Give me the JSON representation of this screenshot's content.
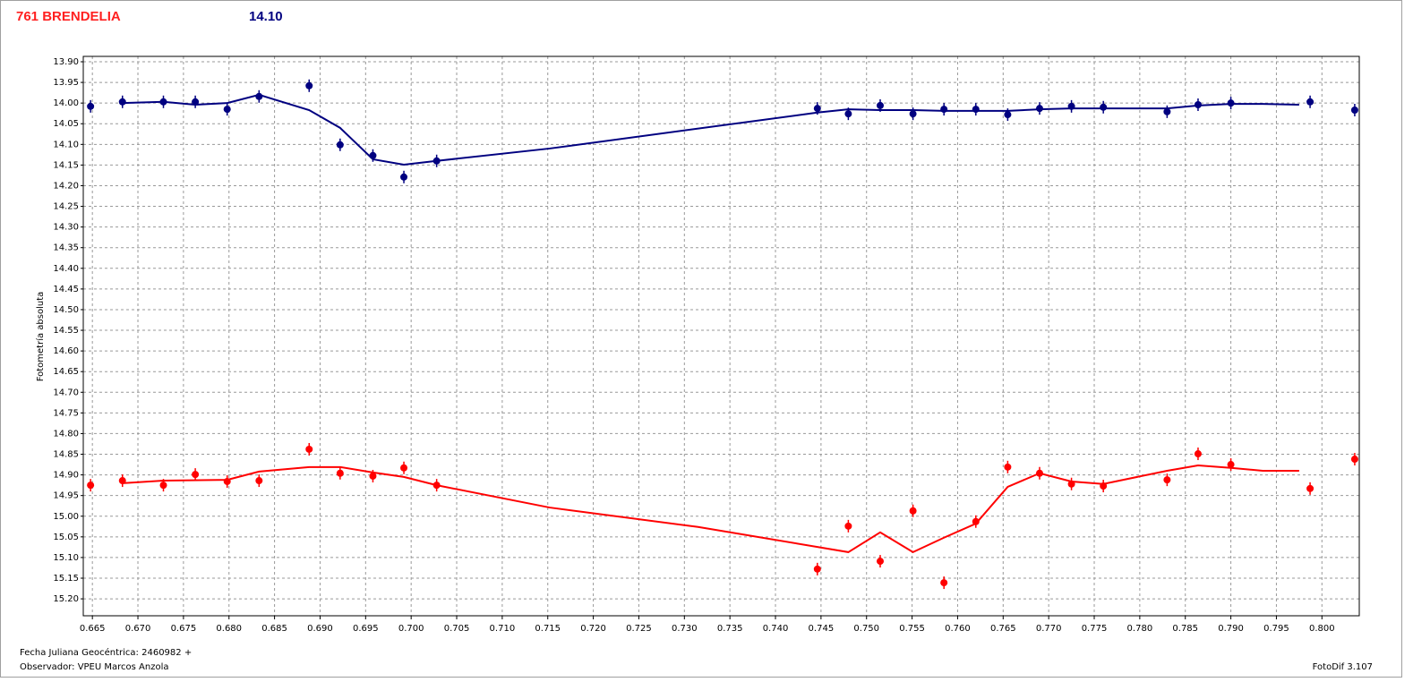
{
  "chart_data": {
    "type": "scatter",
    "title": "761 BRENDELIA",
    "subtitle": "14.10",
    "ylabel": "Fotometría absoluta",
    "xlabel": "Fecha Juliana Geocéntrica: 2460982 +",
    "observer": "Observador: VPEU Marcos Anzola",
    "software": "FotoDif 3.107",
    "grid": true,
    "y_inverted": true,
    "xlim": [
      0.664,
      0.8041
    ],
    "ylim": [
      13.887,
      15.241
    ],
    "xticks": [
      0.665,
      {
        "value": 0.67,
        "label": "0.670"
      },
      0.675,
      {
        "value": 0.68,
        "label": "0.680"
      },
      0.685,
      {
        "value": 0.69,
        "label": "0.690"
      },
      0.695,
      {
        "value": 0.7,
        "label": "0.700"
      },
      0.705,
      {
        "value": 0.71,
        "label": "0.710"
      },
      0.715,
      {
        "value": 0.72,
        "label": "0.720"
      },
      0.725,
      {
        "value": 0.73,
        "label": "0.730"
      },
      0.735,
      {
        "value": 0.74,
        "label": "0.740"
      },
      0.745,
      {
        "value": 0.75,
        "label": "0.750"
      },
      0.755,
      {
        "value": 0.76,
        "label": "0.760"
      },
      0.765,
      {
        "value": 0.77,
        "label": "0.770"
      },
      0.775,
      {
        "value": 0.78,
        "label": "0.780"
      },
      0.785,
      {
        "value": 0.79,
        "label": "0.790"
      },
      0.795,
      {
        "value": 0.8,
        "label": "0.800"
      }
    ],
    "yticks": [
      {
        "value": 13.9,
        "label": "13.90"
      },
      13.95,
      {
        "value": 14.0,
        "label": "14.00"
      },
      14.05,
      {
        "value": 14.1,
        "label": "14.10"
      },
      14.15,
      {
        "value": 14.2,
        "label": "14.20"
      },
      14.25,
      {
        "value": 14.3,
        "label": "14.30"
      },
      14.35,
      {
        "value": 14.4,
        "label": "14.40"
      },
      14.45,
      {
        "value": 14.5,
        "label": "14.50"
      },
      14.55,
      {
        "value": 14.6,
        "label": "14.60"
      },
      14.65,
      {
        "value": 14.7,
        "label": "14.70"
      },
      14.75,
      {
        "value": 14.8,
        "label": "14.80"
      },
      14.85,
      {
        "value": 14.9,
        "label": "14.90"
      },
      14.95,
      {
        "value": 15.0,
        "label": "15.00"
      },
      15.05,
      {
        "value": 15.1,
        "label": "15.10"
      },
      15.15,
      {
        "value": 15.2,
        "label": "15.20"
      }
    ],
    "series": [
      {
        "color": "#000080",
        "style": "points",
        "x": [
          0.6648,
          0.6683,
          0.6728,
          0.6763,
          0.6798,
          0.6833,
          0.6888,
          0.6922,
          0.6958,
          0.6992,
          0.7028,
          0.7446,
          0.748,
          0.7515,
          0.7551,
          0.7585,
          0.762,
          0.7655,
          0.769,
          0.7725,
          0.776,
          0.783,
          0.7864,
          0.79,
          0.7987,
          0.8036
        ],
        "values": [
          14.008,
          13.997,
          13.997,
          13.997,
          14.015,
          13.984,
          13.958,
          14.101,
          14.127,
          14.179,
          14.14,
          14.013,
          14.026,
          14.006,
          14.026,
          14.015,
          14.015,
          14.028,
          14.013,
          14.008,
          14.01,
          14.021,
          14.004,
          14.0,
          13.997,
          14.017
        ]
      },
      {
        "color": "#000080",
        "style": "line",
        "x": [
          0.6683,
          0.6728,
          0.6763,
          0.6798,
          0.6833,
          0.6888,
          0.6922,
          0.6958,
          0.6992,
          0.7028,
          0.7152,
          0.7446,
          0.748,
          0.7515,
          0.7551,
          0.7585,
          0.762,
          0.7655,
          0.769,
          0.7725,
          0.776,
          0.783,
          0.7864,
          0.79,
          0.7935,
          0.7975
        ],
        "values": [
          14.0,
          13.997,
          14.004,
          14.0,
          13.98,
          14.017,
          14.06,
          14.136,
          14.149,
          14.14,
          14.11,
          14.023,
          14.015,
          14.017,
          14.017,
          14.019,
          14.019,
          14.019,
          14.015,
          14.013,
          14.013,
          14.013,
          14.006,
          14.002,
          14.002,
          14.004
        ]
      },
      {
        "color": "#ff0000",
        "style": "points",
        "x": [
          0.6648,
          0.6683,
          0.6728,
          0.6763,
          0.6798,
          0.6833,
          0.6888,
          0.6922,
          0.6958,
          0.6992,
          0.7028,
          0.7446,
          0.748,
          0.7515,
          0.7551,
          0.7585,
          0.762,
          0.7655,
          0.769,
          0.7725,
          0.776,
          0.783,
          0.7864,
          0.79,
          0.7987,
          0.8036
        ],
        "values": [
          14.925,
          14.914,
          14.925,
          14.899,
          14.916,
          14.914,
          14.838,
          14.896,
          14.903,
          14.883,
          14.925,
          15.128,
          15.024,
          15.109,
          14.987,
          15.161,
          15.013,
          14.881,
          14.896,
          14.922,
          14.927,
          14.912,
          14.849,
          14.875,
          14.933,
          14.862
        ]
      },
      {
        "color": "#ff0000",
        "style": "line",
        "x": [
          0.6683,
          0.6728,
          0.6798,
          0.6833,
          0.6888,
          0.6922,
          0.6958,
          0.6992,
          0.7028,
          0.7152,
          0.7315,
          0.748,
          0.7515,
          0.7551,
          0.7585,
          0.762,
          0.7655,
          0.769,
          0.7725,
          0.776,
          0.783,
          0.7864,
          0.79,
          0.7935,
          0.7975
        ],
        "values": [
          14.92,
          14.914,
          14.912,
          14.892,
          14.881,
          14.881,
          14.894,
          14.905,
          14.925,
          14.979,
          15.026,
          15.087,
          15.039,
          15.087,
          15.052,
          15.018,
          14.929,
          14.896,
          14.916,
          14.922,
          14.89,
          14.877,
          14.883,
          14.89,
          14.89
        ]
      }
    ]
  }
}
